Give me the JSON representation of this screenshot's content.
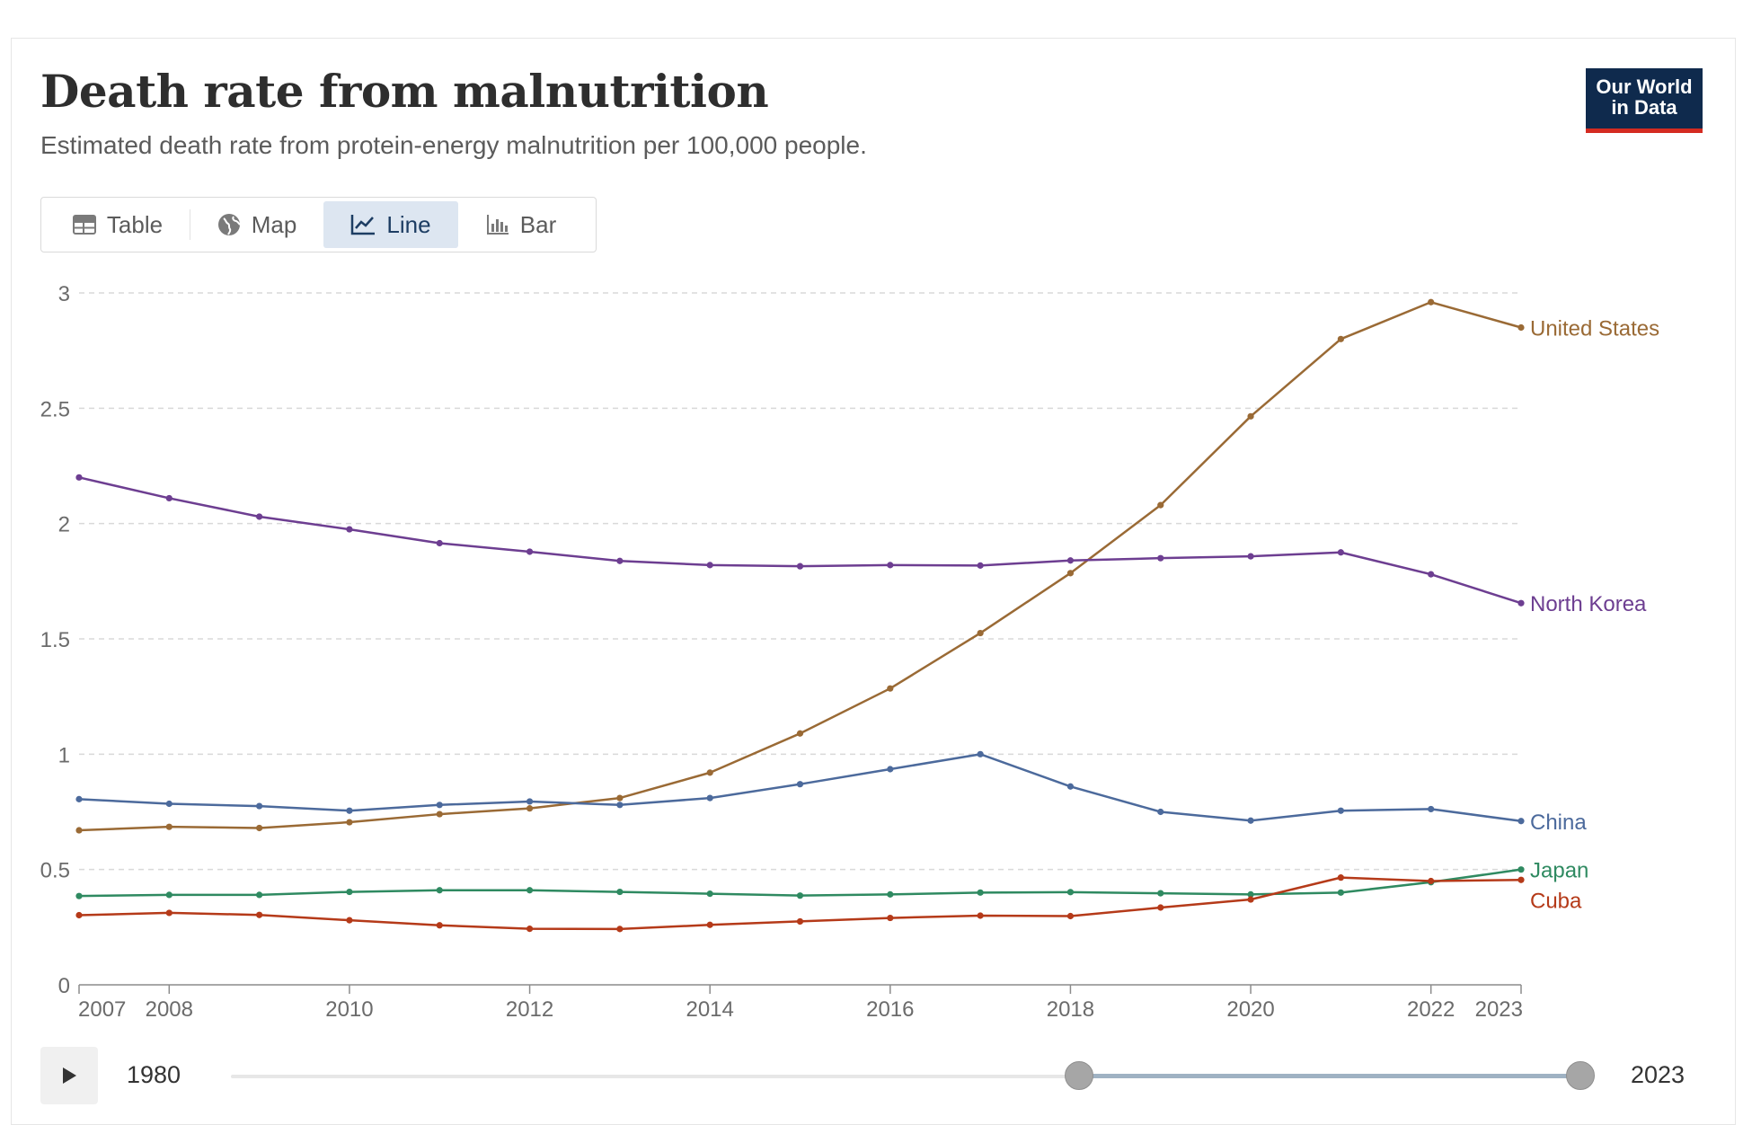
{
  "header": {
    "title": "Death rate from malnutrition",
    "subtitle": "Estimated death rate from protein-energy malnutrition per 100,000 people.",
    "logo_line1": "Our World",
    "logo_line2": "in Data"
  },
  "tabs": [
    {
      "label": "Table",
      "icon": "table-icon"
    },
    {
      "label": "Map",
      "icon": "globe-icon"
    },
    {
      "label": "Line",
      "icon": "line-chart-icon",
      "active": true
    },
    {
      "label": "Bar",
      "icon": "bar-chart-icon"
    }
  ],
  "timeline": {
    "start_label": "1980",
    "end_label": "2023",
    "range_start_year": 2007,
    "range_end_year": 2023
  },
  "chart_data": {
    "type": "line",
    "title": "Death rate from malnutrition",
    "ylabel": "",
    "xlabel": "",
    "ylim": [
      0,
      3
    ],
    "yticks": [
      0,
      0.5,
      1,
      1.5,
      2,
      2.5,
      3
    ],
    "ytick_labels": [
      "0",
      "0.5",
      "1",
      "1.5",
      "2",
      "2.5",
      "3"
    ],
    "xlim": [
      2007,
      2023
    ],
    "xticks": [
      2007,
      2008,
      2010,
      2012,
      2014,
      2016,
      2018,
      2020,
      2022,
      2023
    ],
    "xtick_labels": [
      "2007",
      "2008",
      "2010",
      "2012",
      "2014",
      "2016",
      "2018",
      "2020",
      "2022",
      "2023"
    ],
    "x": [
      2007,
      2008,
      2009,
      2010,
      2011,
      2012,
      2013,
      2014,
      2015,
      2016,
      2017,
      2018,
      2019,
      2020,
      2021,
      2022,
      2023
    ],
    "series": [
      {
        "name": "United States",
        "color": "#9a6a35",
        "values": [
          0.67,
          0.685,
          0.68,
          0.705,
          0.74,
          0.765,
          0.81,
          0.92,
          1.09,
          1.285,
          1.525,
          1.785,
          2.08,
          2.465,
          2.8,
          2.96,
          2.85
        ]
      },
      {
        "name": "North Korea",
        "color": "#6d3e91",
        "values": [
          2.2,
          2.11,
          2.03,
          1.975,
          1.915,
          1.878,
          1.838,
          1.82,
          1.815,
          1.82,
          1.818,
          1.84,
          1.85,
          1.858,
          1.875,
          1.78,
          1.655
        ]
      },
      {
        "name": "China",
        "color": "#4c6a9c",
        "values": [
          0.805,
          0.785,
          0.775,
          0.755,
          0.78,
          0.795,
          0.78,
          0.81,
          0.87,
          0.935,
          1.0,
          0.86,
          0.75,
          0.712,
          0.755,
          0.762,
          0.71
        ]
      },
      {
        "name": "Japan",
        "color": "#2f8a61",
        "values": [
          0.385,
          0.39,
          0.39,
          0.403,
          0.41,
          0.41,
          0.403,
          0.395,
          0.387,
          0.392,
          0.4,
          0.402,
          0.397,
          0.392,
          0.4,
          0.445,
          0.5
        ]
      },
      {
        "name": "Cuba",
        "color": "#b53a19",
        "values": [
          0.302,
          0.312,
          0.303,
          0.28,
          0.258,
          0.243,
          0.242,
          0.26,
          0.275,
          0.29,
          0.3,
          0.298,
          0.335,
          0.37,
          0.465,
          0.45,
          0.455
        ]
      }
    ]
  }
}
